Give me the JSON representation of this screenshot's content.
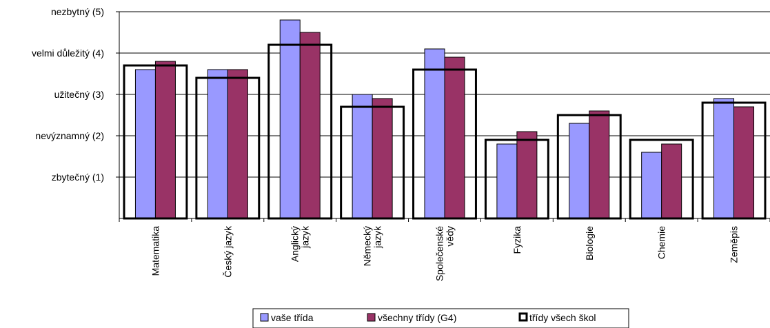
{
  "chart_data": {
    "type": "bar",
    "title": "",
    "xlabel": "",
    "ylabel": "",
    "ylim": [
      0,
      5
    ],
    "y_ticks": [
      {
        "value": 1,
        "label": "zbytečný (1)"
      },
      {
        "value": 2,
        "label": "nevýznamný (2)"
      },
      {
        "value": 3,
        "label": "užitečný (3)"
      },
      {
        "value": 4,
        "label": "velmi důležitý (4)"
      },
      {
        "value": 5,
        "label": "nezbytný (5)"
      }
    ],
    "grid": true,
    "legend_position": "bottom",
    "categories": [
      [
        "Matematika"
      ],
      [
        "Český jazyk"
      ],
      [
        "Anglický",
        "jazyk"
      ],
      [
        "Německý",
        "jazyk"
      ],
      [
        "Společenské",
        "vědy"
      ],
      [
        "Fyzika"
      ],
      [
        "Biologie"
      ],
      [
        "Chemie"
      ],
      [
        "Zeměpis"
      ]
    ],
    "series": [
      {
        "name": "vaše třída",
        "style": "bar",
        "color": "#9999ff",
        "values": [
          3.6,
          3.6,
          4.8,
          3.0,
          4.1,
          1.8,
          2.3,
          1.6,
          2.9
        ]
      },
      {
        "name": "všechny třídy (G4)",
        "style": "bar",
        "color": "#993366",
        "values": [
          3.8,
          3.6,
          4.5,
          2.9,
          3.9,
          2.1,
          2.6,
          1.8,
          2.7
        ]
      },
      {
        "name": "třídy všech škol",
        "style": "outline",
        "color": "#000000",
        "values": [
          3.7,
          3.4,
          4.2,
          2.7,
          3.6,
          1.9,
          2.5,
          1.9,
          2.8
        ]
      }
    ]
  }
}
